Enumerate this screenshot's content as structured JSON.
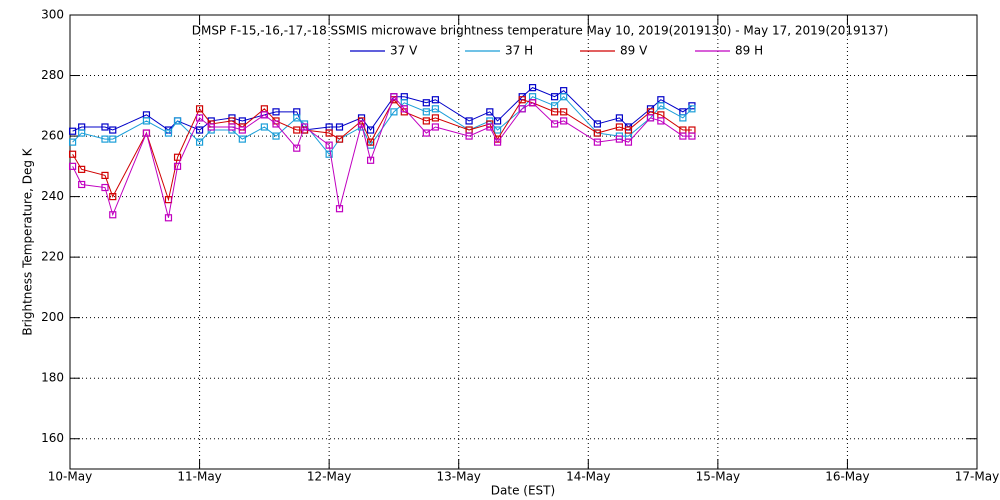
{
  "chart_data": {
    "type": "line",
    "title": "DMSP F-15,-16,-17,-18 SSMIS microwave brightness temperature May 10, 2019(2019130) - May 17, 2019(2019137)",
    "x_label": "Date (EST)",
    "y_label": "Brightness Temperature, Deg K",
    "x": [
      10.02,
      10.09,
      10.27,
      10.33,
      10.59,
      10.76,
      10.83,
      11.0,
      11.09,
      11.25,
      11.33,
      11.5,
      11.59,
      11.75,
      11.81,
      12.0,
      12.08,
      12.25,
      12.32,
      12.5,
      12.58,
      12.75,
      12.82,
      13.08,
      13.24,
      13.3,
      13.49,
      13.57,
      13.74,
      13.81,
      14.07,
      14.24,
      14.31,
      14.48,
      14.56,
      14.73,
      14.8
    ],
    "series": [
      {
        "name": "37 V",
        "color": "#0000c8",
        "values": [
          261.6,
          263,
          263,
          262,
          267,
          262,
          265,
          262,
          265,
          266,
          265,
          267,
          268,
          268,
          262,
          263,
          263,
          266,
          262,
          273,
          273,
          271,
          272,
          265,
          268,
          265,
          273,
          276,
          273,
          275,
          264,
          266,
          263,
          269,
          272,
          268,
          270
        ]
      },
      {
        "name": "37 H",
        "color": "#1a9ed8",
        "values": [
          258,
          261,
          259,
          259,
          265,
          261,
          265,
          258,
          262,
          262,
          259,
          263,
          260,
          266,
          264,
          254,
          259,
          263,
          257,
          268,
          271,
          268,
          269,
          262,
          265,
          262,
          269,
          273,
          270,
          273,
          261,
          260,
          260,
          266,
          270,
          266,
          269
        ]
      },
      {
        "name": "89 V",
        "color": "#d00000",
        "values": [
          254,
          249,
          247,
          240,
          261,
          239,
          253,
          269,
          264,
          265,
          263,
          269,
          265,
          262,
          262,
          261,
          259,
          265,
          258,
          272,
          268,
          265,
          266,
          262,
          264,
          259,
          272,
          271,
          268,
          268,
          261,
          263,
          262,
          268,
          267,
          262,
          262
        ]
      },
      {
        "name": "89 H",
        "color": "#c000c0",
        "values": [
          250,
          244,
          243,
          234,
          261,
          233,
          250,
          266,
          263,
          263,
          262,
          267,
          264,
          256,
          263,
          257,
          236,
          264,
          252,
          273,
          269,
          261,
          263,
          260,
          263,
          258,
          269,
          271,
          264,
          265,
          258,
          259,
          258,
          266,
          265,
          260,
          260
        ]
      }
    ],
    "xlim": [
      10,
      17
    ],
    "xticks": [
      {
        "value": 10,
        "label": "10-May"
      },
      {
        "value": 11,
        "label": "11-May"
      },
      {
        "value": 12,
        "label": "12-May"
      },
      {
        "value": 13,
        "label": "13-May"
      },
      {
        "value": 14,
        "label": "14-May"
      },
      {
        "value": 15,
        "label": "15-May"
      },
      {
        "value": 16,
        "label": "16-May"
      },
      {
        "value": 17,
        "label": "17-May"
      }
    ],
    "ylim": [
      150,
      300
    ],
    "yticks": [
      160,
      180,
      200,
      220,
      240,
      260,
      280,
      300
    ],
    "grid": true,
    "legend": "top"
  }
}
